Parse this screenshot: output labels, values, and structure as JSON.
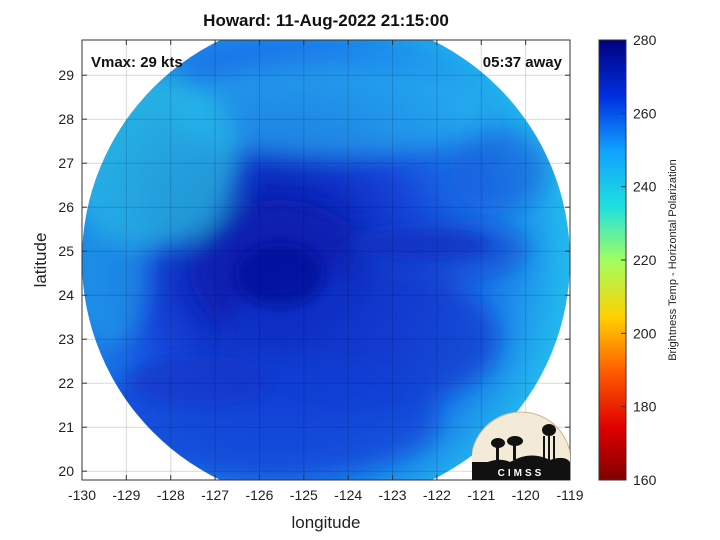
{
  "title": "Howard: 11-Aug-2022 21:15:00",
  "vmax_label": "Vmax: 29 kts",
  "time_label": "05:37 away",
  "logo_text": "CIMSS",
  "xaxis": {
    "label": "longitude",
    "min": -130,
    "max": -119,
    "ticks": [
      "-130",
      "-129",
      "-128",
      "-127",
      "-126",
      "-125",
      "-124",
      "-123",
      "-122",
      "-121",
      "-120",
      "-119"
    ]
  },
  "yaxis": {
    "label": "latitude",
    "min": 19.8,
    "max": 29.8,
    "ticks": [
      "20",
      "21",
      "22",
      "23",
      "24",
      "25",
      "26",
      "27",
      "28",
      "29"
    ]
  },
  "colorbar": {
    "label": "Brightness Temp - Horizontal Polarization",
    "min": 160,
    "max": 280,
    "ticks": [
      "160",
      "180",
      "200",
      "220",
      "240",
      "260",
      "280"
    ]
  },
  "colors": {
    "cold_core": "#0818a8",
    "mid": "#1a5ae6",
    "warm_edge": "#28d0e8",
    "background": "#ffffff"
  },
  "storm_center": {
    "lon": -124.8,
    "lat": 24.5
  }
}
